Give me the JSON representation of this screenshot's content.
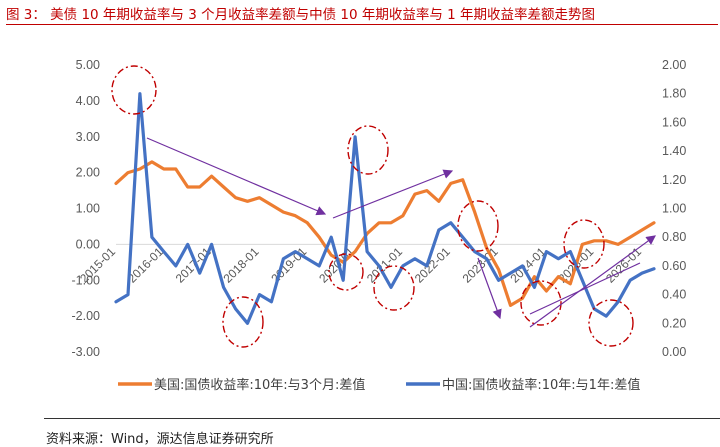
{
  "title": "图 3： 美债 10 年期收益率与 3 个月收益率差额与中债 10 年期收益率与 1 年期收益率差额走势图",
  "source": "资料来源：Wind，源达信息证券研究所",
  "colors": {
    "orange": "#ed7d31",
    "blue": "#4472c4",
    "annotation_red": "#c00000",
    "arrow_purple": "#7030a0"
  },
  "chart_data": {
    "type": "line",
    "x": [
      "2015-01",
      "2015-04",
      "2015-07",
      "2015-10",
      "2016-01",
      "2016-04",
      "2016-07",
      "2016-10",
      "2017-01",
      "2017-04",
      "2017-07",
      "2017-10",
      "2018-01",
      "2018-04",
      "2018-07",
      "2018-10",
      "2019-01",
      "2019-04",
      "2019-07",
      "2019-10",
      "2020-01",
      "2020-04",
      "2020-07",
      "2020-10",
      "2021-01",
      "2021-04",
      "2021-07",
      "2021-10",
      "2022-01",
      "2022-04",
      "2022-07",
      "2022-10",
      "2023-01",
      "2023-04",
      "2023-07",
      "2023-10",
      "2024-01",
      "2024-04",
      "2024-07",
      "2024-10",
      "2025-01",
      "2025-04",
      "2025-07",
      "2025-10",
      "2026-01",
      "2026-04"
    ],
    "x_tick_labels": [
      "2015-01",
      "2016-01",
      "2017-01",
      "2018-01",
      "2019-01",
      "2020-01",
      "2021-01",
      "2022-01",
      "2023-01",
      "2024-01",
      "2025-01",
      "2026-01"
    ],
    "y_left": {
      "ticks": [
        "5.00",
        "4.00",
        "3.00",
        "2.00",
        "1.00",
        "0.00",
        "-1.00",
        "-2.00",
        "-3.00"
      ],
      "lim": [
        -3,
        5
      ]
    },
    "y_right": {
      "ticks": [
        "2.00",
        "1.80",
        "1.60",
        "1.40",
        "1.20",
        "1.00",
        "0.80",
        "0.60",
        "0.40",
        "0.20",
        "0.00"
      ],
      "lim": [
        0,
        2
      ]
    },
    "series": [
      {
        "name": "美国:国债收益率:10年:与3个月:差值",
        "axis": "left",
        "color": "#ed7d31",
        "values": [
          1.7,
          2.0,
          2.1,
          2.3,
          2.1,
          2.1,
          1.6,
          1.6,
          1.9,
          1.6,
          1.3,
          1.2,
          1.3,
          1.1,
          0.9,
          0.8,
          0.6,
          0.2,
          -0.3,
          -0.5,
          -0.2,
          0.3,
          0.6,
          0.6,
          0.8,
          1.4,
          1.5,
          1.2,
          1.7,
          1.8,
          0.9,
          -0.1,
          -0.7,
          -1.7,
          -1.5,
          -0.9,
          -1.3,
          -0.9,
          -1.1,
          0.0,
          0.1,
          0.1,
          0.0,
          0.2,
          0.4,
          0.6
        ]
      },
      {
        "name": "中国:国债收益率:10年:与1年:差值",
        "axis": "right",
        "color": "#4472c4",
        "values": [
          0.35,
          0.4,
          1.8,
          0.8,
          0.7,
          0.6,
          0.75,
          0.55,
          0.75,
          0.45,
          0.3,
          0.2,
          0.4,
          0.35,
          0.65,
          0.7,
          0.65,
          0.6,
          0.8,
          0.5,
          1.5,
          0.7,
          0.6,
          0.45,
          0.6,
          0.65,
          0.6,
          0.85,
          0.9,
          0.8,
          0.7,
          0.65,
          0.5,
          0.55,
          0.6,
          0.45,
          0.7,
          0.65,
          0.7,
          0.5,
          0.3,
          0.25,
          0.35,
          0.5,
          0.55,
          0.58
        ]
      }
    ]
  },
  "legend": {
    "orange_label": "美国:国债收益率:10年:与3个月:差值",
    "blue_label": "中国:国债收益率:10年:与1年:差值"
  }
}
